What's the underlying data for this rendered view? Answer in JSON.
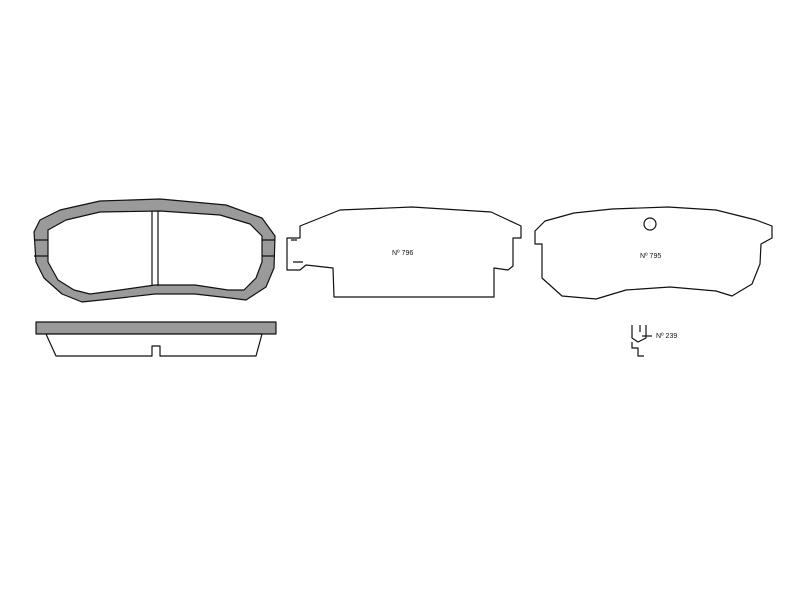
{
  "labels": {
    "shim_a": "Nº 796",
    "shim_b": "Nº 795",
    "clip": "Nº 239"
  },
  "colors": {
    "line": "#111111",
    "friction_material": "#9a9a9a",
    "background": "#ffffff"
  }
}
